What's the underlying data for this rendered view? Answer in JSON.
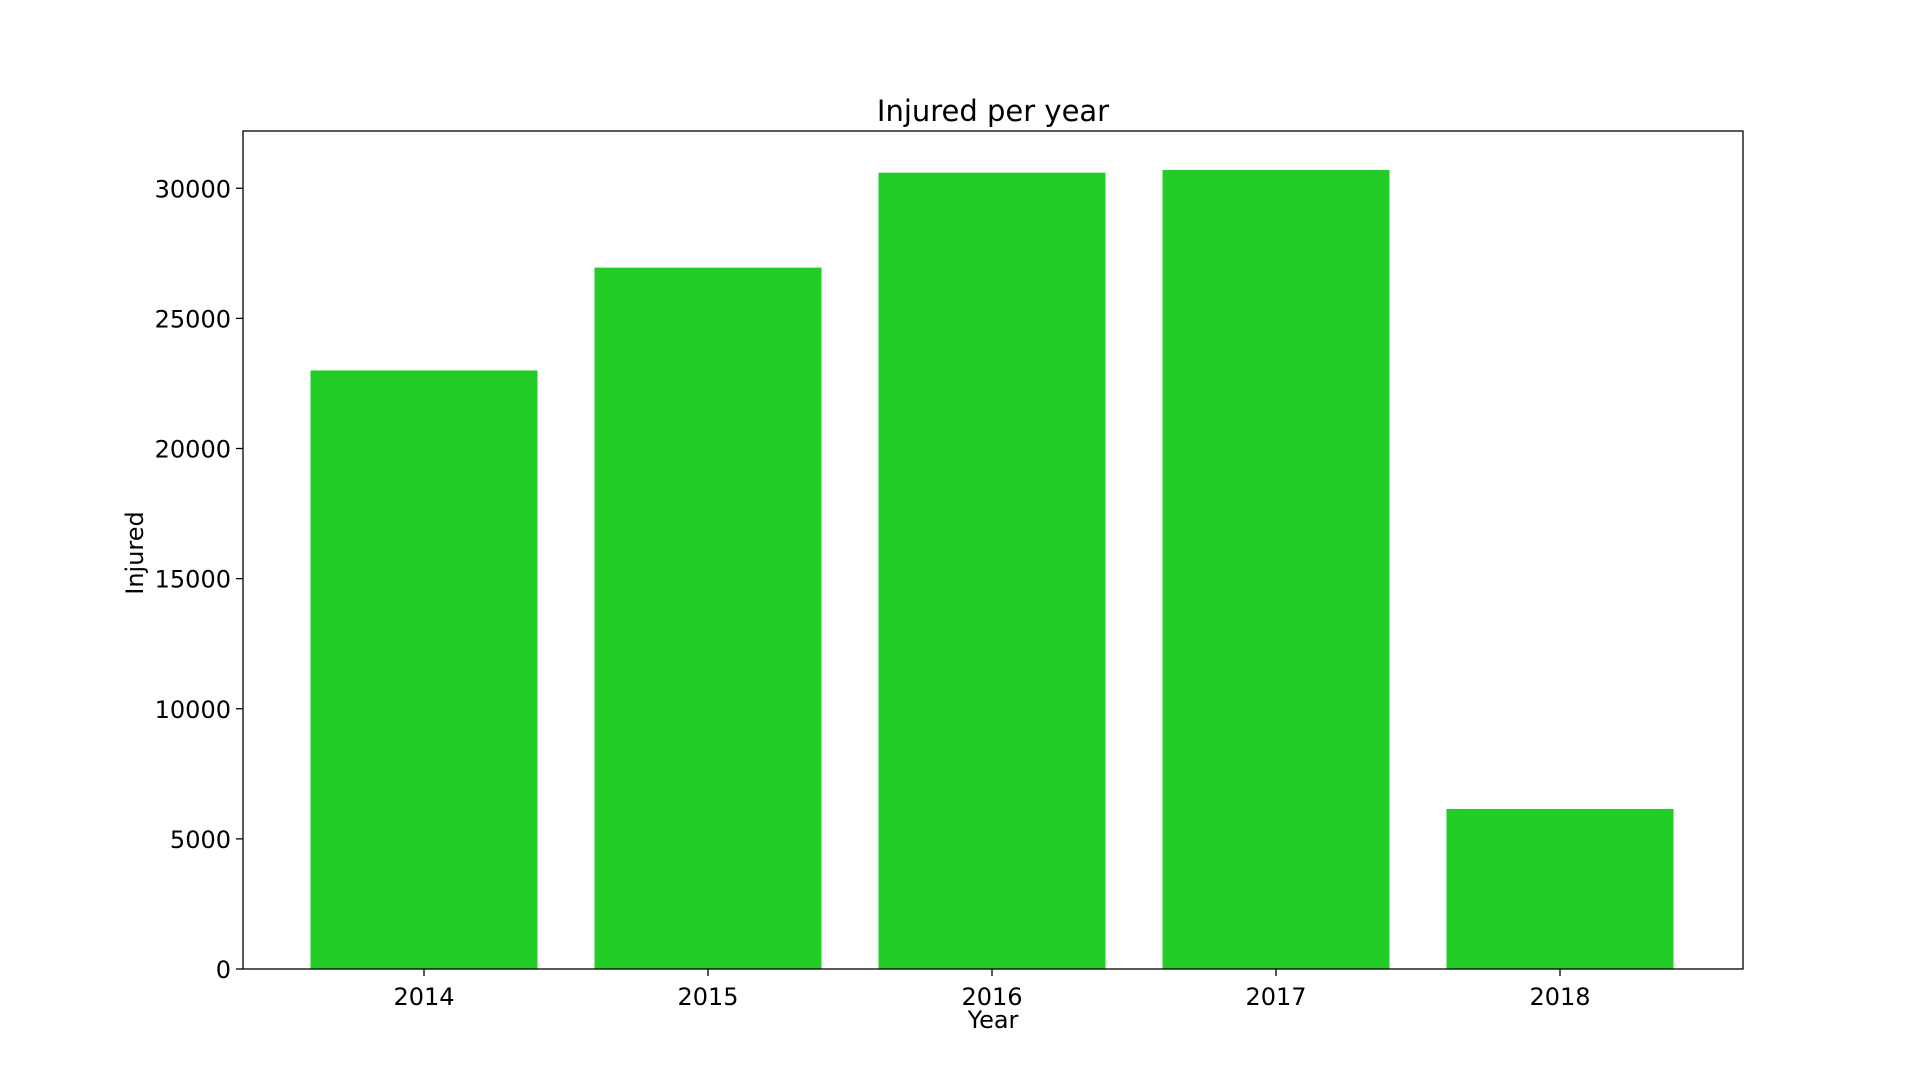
{
  "chart_data": {
    "type": "bar",
    "title": "Injured per year",
    "xlabel": "Year",
    "ylabel": "Injured",
    "categories": [
      "2014",
      "2015",
      "2016",
      "2017",
      "2018"
    ],
    "values": [
      23000,
      26950,
      30600,
      30700,
      6150
    ],
    "ylim": [
      0,
      32200
    ],
    "yticks": [
      0,
      5000,
      10000,
      15000,
      20000,
      25000,
      30000
    ],
    "grid": false,
    "legend": "none",
    "bar_color": "#22cb25"
  }
}
